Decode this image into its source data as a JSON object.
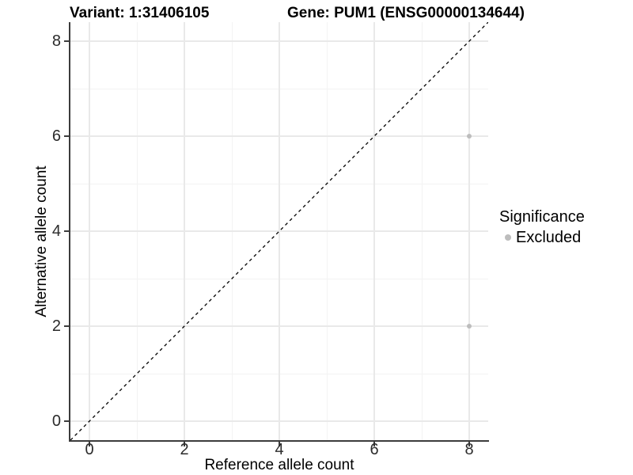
{
  "header": {
    "variant_title": "Variant: 1:31406105",
    "gene_title": "Gene: PUM1 (ENSG00000134644)"
  },
  "chart_data": {
    "type": "scatter",
    "xlabel": "Reference allele count",
    "ylabel": "Alternative allele count",
    "xlim": [
      -0.4,
      8.4
    ],
    "ylim": [
      -0.4,
      8.4
    ],
    "x_ticks": [
      0,
      2,
      4,
      6,
      8
    ],
    "y_ticks": [
      0,
      2,
      4,
      6,
      8
    ],
    "x_minor_gridlines": [
      1,
      3,
      5,
      7
    ],
    "y_minor_gridlines": [
      1,
      3,
      5,
      7
    ],
    "grid": "major+minor on white background",
    "series": [
      {
        "name": "Excluded",
        "color": "#bdbdbd",
        "points": [
          [
            8,
            6
          ],
          [
            8,
            2
          ]
        ]
      }
    ],
    "reference_line": {
      "description": "identity line y = x",
      "from": [
        -0.4,
        -0.4
      ],
      "to": [
        8.4,
        8.4
      ],
      "style": "dashed",
      "color": "#000000"
    },
    "legend_position": "right-middle"
  },
  "legend": {
    "title": "Significance",
    "items": [
      {
        "label": "Excluded",
        "swatch_color": "#bdbdbd"
      }
    ]
  },
  "colors": {
    "axis_line": "#3c3c3c",
    "tick_label": "#2b2b2b",
    "grid_major": "#e9e9e9",
    "grid_minor": "#f3f3f3"
  }
}
